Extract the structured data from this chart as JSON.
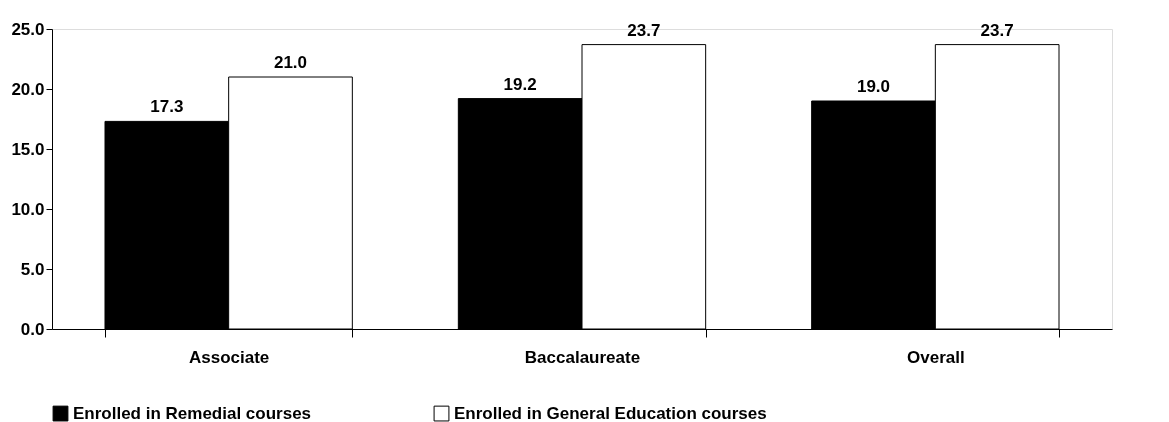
{
  "chart_data": {
    "type": "bar",
    "categories": [
      "Associate",
      "Baccalaureate",
      "Overall"
    ],
    "series": [
      {
        "name": "Enrolled in Remedial courses",
        "color": "#000000",
        "values": [
          17.3,
          19.2,
          19.0
        ],
        "value_labels": [
          "17.3",
          "19.2",
          "19.0"
        ]
      },
      {
        "name": "Enrolled in General Education courses",
        "color": "#ffffff",
        "values": [
          21.0,
          23.7,
          23.7
        ],
        "value_labels": [
          "21.0",
          "23.7",
          "23.7"
        ]
      }
    ],
    "ylim": [
      0,
      25
    ],
    "yticks": [
      {
        "value": 0,
        "label": "0.0"
      },
      {
        "value": 5,
        "label": "5.0"
      },
      {
        "value": 10,
        "label": "10.0"
      },
      {
        "value": 15,
        "label": "15.0"
      },
      {
        "value": 20,
        "label": "20.0"
      },
      {
        "value": 25,
        "label": "25.0"
      }
    ],
    "grid": false,
    "legend": "bottom"
  }
}
